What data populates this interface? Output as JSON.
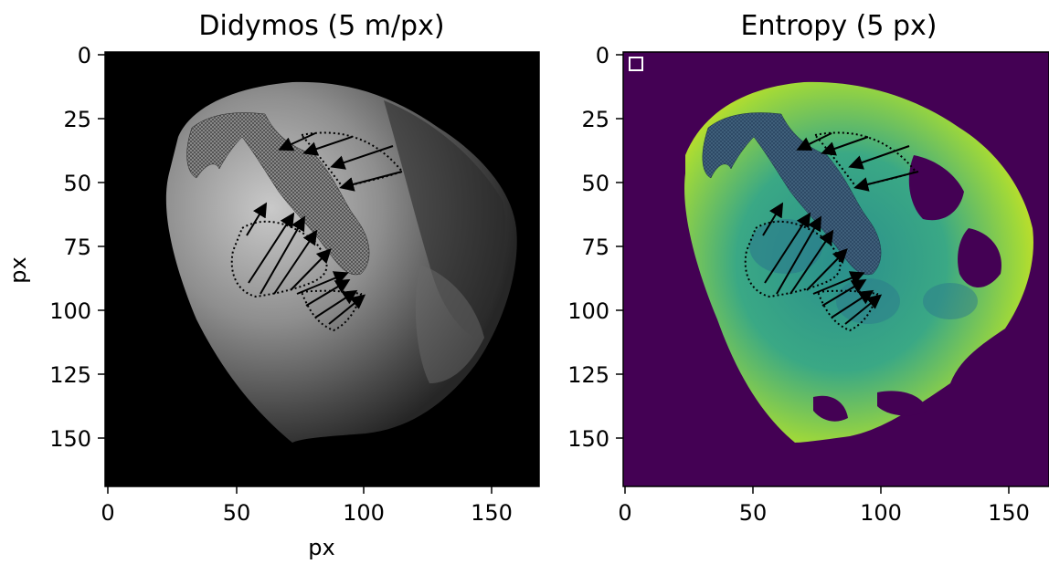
{
  "left_panel": {
    "title": "Didymos (5 m/px)",
    "xlabel": "px",
    "ylabel": "px",
    "x_ticks": [
      "0",
      "50",
      "100",
      "150"
    ],
    "y_ticks": [
      "0",
      "25",
      "50",
      "75",
      "100",
      "125",
      "150"
    ],
    "image": "grayscale asteroid image with hatched dark region and dotted-outline regions with arrows"
  },
  "right_panel": {
    "title": "Entropy (5 px)",
    "x_ticks": [
      "0",
      "50",
      "100",
      "150"
    ],
    "y_ticks": [
      "0",
      "25",
      "50",
      "75",
      "100",
      "125",
      "150"
    ],
    "image": "viridis entropy map of asteroid with same overlays",
    "background_color": "#440154"
  },
  "colors": {
    "viridis_bg": "#440154",
    "viridis_teal": "#2a9a8a",
    "viridis_yellow": "#cde11d"
  }
}
